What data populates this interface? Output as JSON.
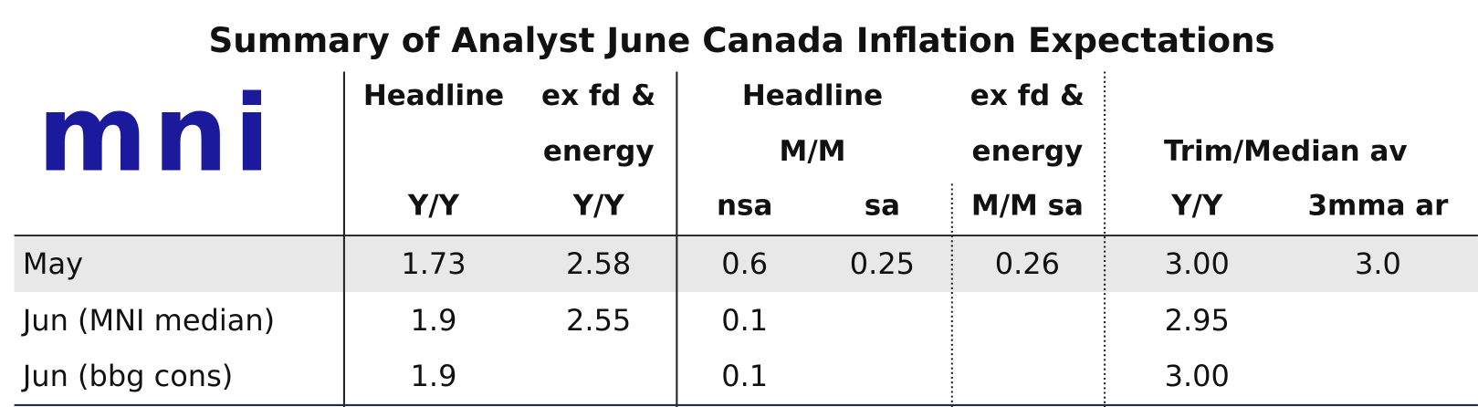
{
  "title": "Summary of Analyst June Canada Inflation Expectations",
  "logo": "mni",
  "header": {
    "headline_yy": [
      "Headline",
      "Y/Y"
    ],
    "core_yy": [
      "ex fd &",
      "energy",
      "Y/Y"
    ],
    "headline_mm": [
      "Headline",
      "M/M"
    ],
    "headline_mm_sub": [
      "nsa",
      "sa"
    ],
    "core_mm": [
      "ex fd &",
      "energy",
      "M/M sa"
    ],
    "trim_median": "Trim/Median av",
    "trim_median_sub": [
      "Y/Y",
      "3mma ar"
    ]
  },
  "rows": [
    {
      "label": "May",
      "cells": [
        "1.73",
        "2.58",
        "0.6",
        "0.25",
        "0.26",
        "3.00",
        "3.0"
      ]
    },
    {
      "label": "Jun (MNI median)",
      "cells": [
        "1.9",
        "2.55",
        "0.1",
        null,
        null,
        "2.95",
        null
      ]
    },
    {
      "label": "Jun (bbg cons)",
      "cells": [
        "1.9",
        null,
        "0.1",
        null,
        null,
        "3.00",
        null
      ]
    }
  ]
}
